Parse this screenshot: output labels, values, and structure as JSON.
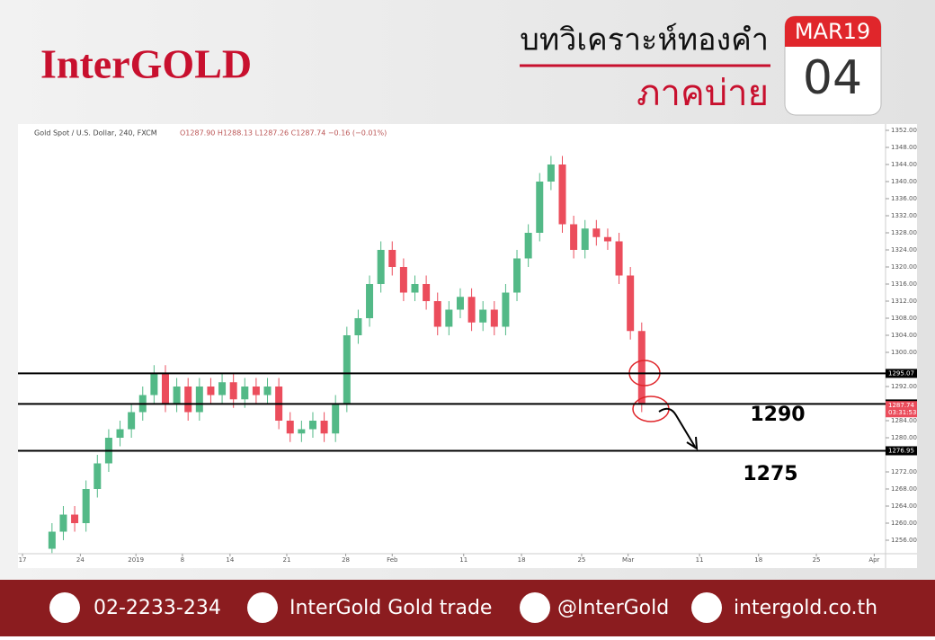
{
  "brand": "InterGOLD",
  "headline": "บทวิเคราะห์ทองคำ",
  "session": "ภาคบ่าย",
  "calendar": {
    "month": "MAR19",
    "day": "04"
  },
  "chart_data": {
    "type": "candlestick",
    "legend": "Gold Spot / U.S. Dollar, 240, FXCM",
    "ohlc_text": "O1287.90 H1288.13 L1287.26 C1287.74 −0.16 (−0.01%)",
    "x": [
      0,
      1,
      2,
      3,
      4,
      5,
      6,
      7,
      8,
      9,
      10,
      11,
      12,
      13,
      14,
      15,
      16,
      17,
      18,
      19,
      20,
      21,
      22,
      23,
      24,
      25,
      26,
      27,
      28,
      29,
      30,
      31,
      32,
      33,
      34,
      35,
      36,
      37,
      38,
      39,
      40,
      41,
      42,
      43,
      44,
      45,
      46,
      47,
      48,
      49,
      50,
      51,
      52
    ],
    "open": [
      1254,
      1258,
      1262,
      1260,
      1268,
      1274,
      1280,
      1282,
      1286,
      1290,
      1295,
      1288,
      1292,
      1286,
      1292,
      1290,
      1293,
      1289,
      1292,
      1290,
      1292,
      1284,
      1281,
      1282,
      1284,
      1281,
      1288,
      1304,
      1308,
      1316,
      1324,
      1320,
      1314,
      1316,
      1312,
      1306,
      1310,
      1313,
      1307,
      1310,
      1306,
      1314,
      1322,
      1328,
      1340,
      1344,
      1330,
      1324,
      1329,
      1327,
      1326,
      1318,
      1305
    ],
    "high": [
      1260,
      1264,
      1264,
      1270,
      1276,
      1282,
      1284,
      1288,
      1292,
      1297,
      1297,
      1294,
      1294,
      1294,
      1294,
      1295,
      1295,
      1294,
      1294,
      1294,
      1294,
      1286,
      1284,
      1286,
      1286,
      1290,
      1306,
      1310,
      1318,
      1326,
      1326,
      1322,
      1318,
      1318,
      1314,
      1312,
      1315,
      1315,
      1312,
      1312,
      1316,
      1324,
      1330,
      1342,
      1346,
      1346,
      1332,
      1331,
      1331,
      1329,
      1328,
      1320,
      1307
    ],
    "low": [
      1253,
      1256,
      1258,
      1258,
      1266,
      1272,
      1278,
      1280,
      1284,
      1288,
      1286,
      1286,
      1284,
      1284,
      1288,
      1288,
      1287,
      1287,
      1288,
      1288,
      1282,
      1279,
      1279,
      1280,
      1279,
      1279,
      1286,
      1302,
      1306,
      1314,
      1318,
      1312,
      1312,
      1310,
      1304,
      1304,
      1308,
      1305,
      1305,
      1304,
      1304,
      1312,
      1320,
      1326,
      1338,
      1328,
      1322,
      1322,
      1325,
      1324,
      1316,
      1303,
      1286
    ],
    "close": [
      1258,
      1262,
      1260,
      1268,
      1274,
      1280,
      1282,
      1286,
      1290,
      1295,
      1288,
      1292,
      1286,
      1292,
      1290,
      1293,
      1289,
      1292,
      1290,
      1292,
      1284,
      1281,
      1282,
      1284,
      1281,
      1288,
      1304,
      1308,
      1316,
      1324,
      1320,
      1314,
      1316,
      1312,
      1306,
      1310,
      1313,
      1307,
      1310,
      1306,
      1314,
      1322,
      1328,
      1340,
      1344,
      1330,
      1324,
      1329,
      1327,
      1326,
      1318,
      1305,
      1288
    ],
    "up_color": "#53b987",
    "down_color": "#eb4d5c",
    "xlim": [
      -3,
      73.5
    ],
    "xticks": [
      {
        "value": -2.6,
        "label": "17"
      },
      {
        "value": 2.5,
        "label": "24"
      },
      {
        "value": 7.4,
        "label": "2019"
      },
      {
        "value": 11.5,
        "label": "8"
      },
      {
        "value": 15.7,
        "label": "14"
      },
      {
        "value": 20.7,
        "label": "21"
      },
      {
        "value": 25.9,
        "label": "28"
      },
      {
        "value": 30,
        "label": "Feb"
      },
      {
        "value": 36.3,
        "label": "11"
      },
      {
        "value": 41.4,
        "label": "18"
      },
      {
        "value": 46.7,
        "label": "25"
      },
      {
        "value": 50.8,
        "label": "Mar"
      },
      {
        "value": 57.1,
        "label": "11"
      },
      {
        "value": 62.3,
        "label": "18"
      },
      {
        "value": 67.4,
        "label": "25"
      },
      {
        "value": 72.5,
        "label": "Apr"
      }
    ],
    "ylim": [
      1253,
      1354
    ],
    "yticks": [
      {
        "value": 1256,
        "label": "1256.00"
      },
      {
        "value": 1260,
        "label": "1260.00"
      },
      {
        "value": 1264,
        "label": "1264.00"
      },
      {
        "value": 1268,
        "label": "1268.00"
      },
      {
        "value": 1272,
        "label": "1272.00"
      },
      {
        "value": 1280,
        "label": "1280.00"
      },
      {
        "value": 1284,
        "label": "1284.00"
      },
      {
        "value": 1292,
        "label": "1292.00"
      },
      {
        "value": 1300,
        "label": "1300.00"
      },
      {
        "value": 1304,
        "label": "1304.00"
      },
      {
        "value": 1308,
        "label": "1308.00"
      },
      {
        "value": 1312,
        "label": "1312.00"
      },
      {
        "value": 1316,
        "label": "1316.00"
      },
      {
        "value": 1320,
        "label": "1320.00"
      },
      {
        "value": 1324,
        "label": "1324.00"
      },
      {
        "value": 1328,
        "label": "1328.00"
      },
      {
        "value": 1332,
        "label": "1332.00"
      },
      {
        "value": 1336,
        "label": "1336.00"
      },
      {
        "value": 1340,
        "label": "1340.00"
      },
      {
        "value": 1344,
        "label": "1344.00"
      },
      {
        "value": 1348,
        "label": "1348.00"
      },
      {
        "value": 1352,
        "label": "1352.00"
      }
    ],
    "hlines": [
      1295.07,
      1287.92,
      1276.95
    ],
    "last": 1287.74,
    "countdown": "03:31:53",
    "annotations": [
      "1290",
      "1275"
    ],
    "grid": false
  },
  "footer": {
    "phone": "02-2233-234",
    "facebook": "InterGold Gold trade",
    "line": "@InterGold",
    "web": "intergold.co.th"
  }
}
